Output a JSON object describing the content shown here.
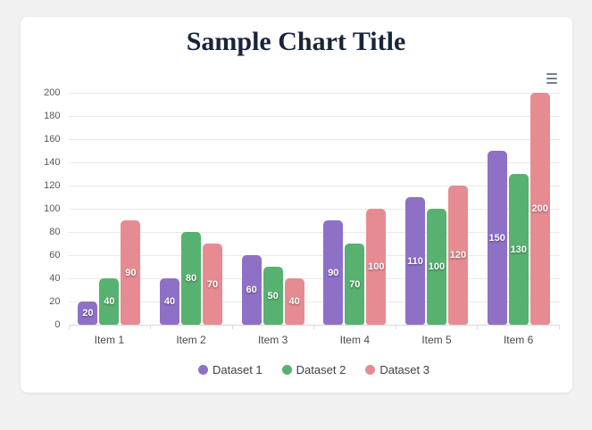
{
  "page": {
    "background_color": "#f1f1f2",
    "card_background_color": "#ffffff"
  },
  "header": {
    "title": "Sample Chart Title",
    "title_color": "#1a2439"
  },
  "toolbar": {
    "menu_icon": "hamburger-menu-icon",
    "menu_icon_color": "#6e8192"
  },
  "chart_data": {
    "type": "bar",
    "title": "Sample Chart Title",
    "categories": [
      "Item 1",
      "Item 2",
      "Item 3",
      "Item 4",
      "Item 5",
      "Item 6"
    ],
    "series": [
      {
        "name": "Dataset 1",
        "color": "#8f70c7",
        "values": [
          20,
          40,
          60,
          90,
          110,
          150
        ]
      },
      {
        "name": "Dataset 2",
        "color": "#57b170",
        "values": [
          40,
          80,
          50,
          70,
          100,
          130
        ]
      },
      {
        "name": "Dataset 3",
        "color": "#e78b93",
        "values": [
          90,
          70,
          40,
          100,
          120,
          200
        ]
      }
    ],
    "xlabel": "",
    "ylabel": "",
    "ylim": [
      0,
      200
    ],
    "yticks": [
      0,
      20,
      40,
      60,
      80,
      100,
      120,
      140,
      160,
      180,
      200
    ],
    "grid": true,
    "legend_position": "bottom",
    "data_labels": true,
    "colors": {
      "gridline": "#e9e9e9",
      "axis_line": "#d9d9d9",
      "axis_label_text": "#54585c",
      "category_label_text": "#46494c",
      "legend_label_text": "#3c4043",
      "data_label_text": "#ffffff"
    }
  }
}
